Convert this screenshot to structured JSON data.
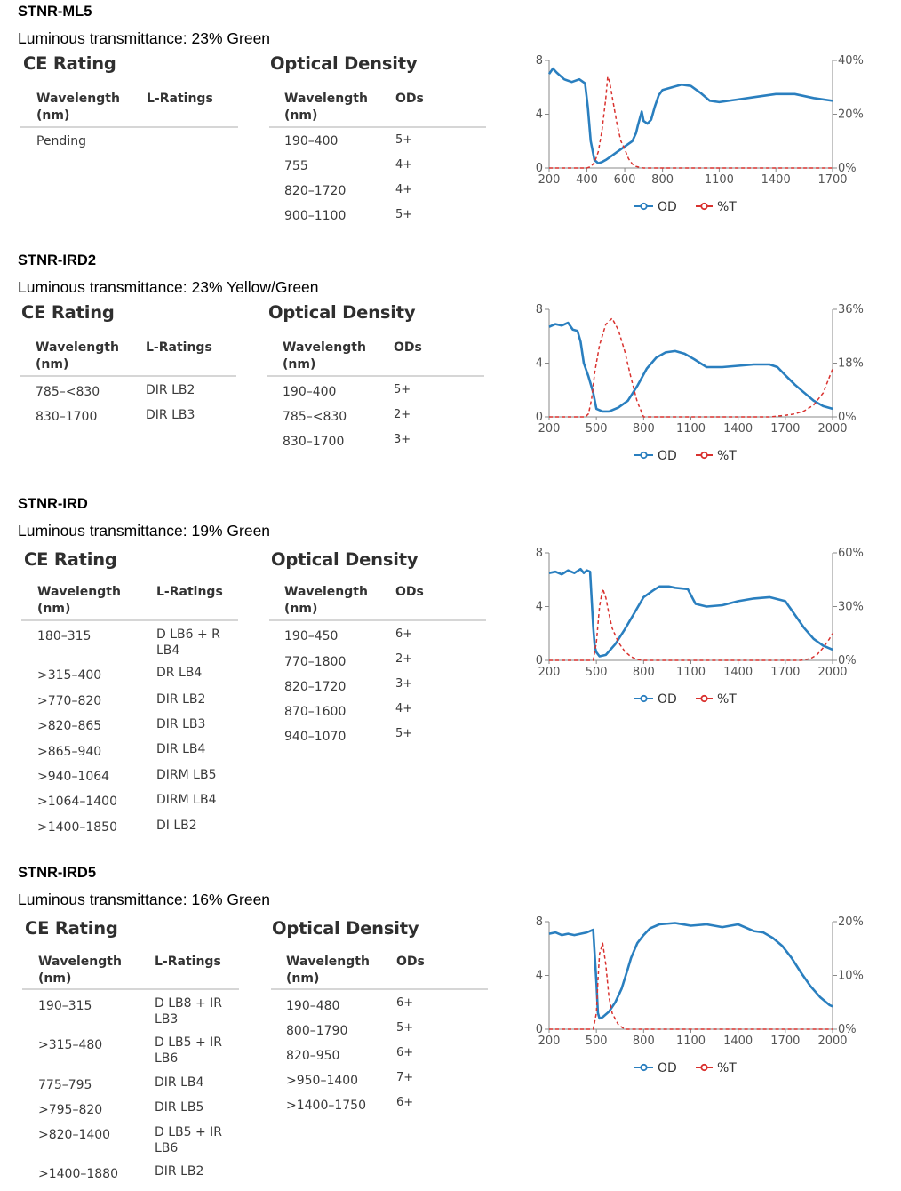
{
  "labels": {
    "ce_rating": "CE Rating",
    "optical_density": "Optical Density",
    "wavelength_nm": "Wavelength (nm)",
    "l_ratings": "L-Ratings",
    "ods": "ODs"
  },
  "legend": {
    "od": "OD",
    "t": "%T"
  },
  "colors": {
    "od": "#2a7fbf",
    "t": "#d9322f",
    "rule": "#d6d6d6",
    "axis": "#888888"
  },
  "products": [
    {
      "name": "STNR-ML5",
      "luminous": "Luminous transmittance: 23% Green",
      "ce": [
        {
          "wavelength": "Pending",
          "rating": ""
        }
      ],
      "od": [
        {
          "wavelength": "190–400",
          "od": "5+"
        },
        {
          "wavelength": "755",
          "od": "4+"
        },
        {
          "wavelength": "820–1720",
          "od": "4+"
        },
        {
          "wavelength": "900–1100",
          "od": "5+"
        }
      ]
    },
    {
      "name": "STNR-IRD2",
      "luminous": "Luminous transmittance: 23% Yellow/Green",
      "ce": [
        {
          "wavelength": "785–<830",
          "rating": "DIR LB2"
        },
        {
          "wavelength": "830–1700",
          "rating": "DIR LB3"
        }
      ],
      "od": [
        {
          "wavelength": "190–400",
          "od": "5+"
        },
        {
          "wavelength": "785–<830",
          "od": "2+"
        },
        {
          "wavelength": "830–1700",
          "od": "3+"
        }
      ]
    },
    {
      "name": "STNR-IRD",
      "luminous": "Luminous transmittance: 19% Green",
      "ce": [
        {
          "wavelength": "180–315",
          "rating": "D LB6 + R LB4"
        },
        {
          "wavelength": ">315–400",
          "rating": "DR LB4"
        },
        {
          "wavelength": ">770–820",
          "rating": "DIR LB2"
        },
        {
          "wavelength": ">820–865",
          "rating": "DIR LB3"
        },
        {
          "wavelength": ">865–940",
          "rating": "DIR LB4"
        },
        {
          "wavelength": ">940–1064",
          "rating": "DIRM LB5"
        },
        {
          "wavelength": ">1064–1400",
          "rating": "DIRM LB4"
        },
        {
          "wavelength": ">1400–1850",
          "rating": "DI LB2"
        }
      ],
      "od": [
        {
          "wavelength": "190–450",
          "od": "6+"
        },
        {
          "wavelength": "770–1800",
          "od": "2+"
        },
        {
          "wavelength": "820–1720",
          "od": "3+"
        },
        {
          "wavelength": "870–1600",
          "od": "4+"
        },
        {
          "wavelength": "940–1070",
          "od": "5+"
        }
      ]
    },
    {
      "name": "STNR-IRD5",
      "luminous": "Luminous transmittance: 16% Green",
      "ce": [
        {
          "wavelength": "190–315",
          "rating": "D LB8 + IR LB3"
        },
        {
          "wavelength": ">315–480",
          "rating": "D LB5 + IR LB6"
        },
        {
          "wavelength": "775–795",
          "rating": "DIR LB4"
        },
        {
          "wavelength": ">795–820",
          "rating": "DIR LB5"
        },
        {
          "wavelength": ">820–1400",
          "rating": "D LB5 + IR LB6"
        },
        {
          "wavelength": ">1400–1880",
          "rating": "DIR LB2"
        }
      ],
      "od": [
        {
          "wavelength": "190–480",
          "od": "6+"
        },
        {
          "wavelength": "800–1790",
          "od": "5+"
        },
        {
          "wavelength": "820–950",
          "od": "6+"
        },
        {
          "wavelength": ">950–1400",
          "od": "7+"
        },
        {
          "wavelength": ">1400–1750",
          "od": "6+"
        }
      ]
    }
  ],
  "chart_data": [
    {
      "type": "line",
      "title": "",
      "xlabel": "",
      "ylabel": "",
      "xlim": [
        200,
        1700
      ],
      "ylim_left": [
        0,
        8
      ],
      "ylim_right": [
        0,
        40
      ],
      "x_ticks": [
        "200",
        "400",
        "600",
        "800",
        "1100",
        "1400",
        "1700"
      ],
      "y_left_ticks": [
        "0",
        "4",
        "8"
      ],
      "y_right_ticks": [
        "0%",
        "20%",
        "40%"
      ],
      "legend": "bottom-center",
      "series": [
        {
          "name": "OD",
          "axis": "left",
          "x": [
            200,
            220,
            240,
            280,
            320,
            360,
            390,
            405,
            420,
            440,
            460,
            480,
            500,
            530,
            560,
            600,
            640,
            660,
            670,
            690,
            700,
            720,
            740,
            760,
            780,
            800,
            850,
            900,
            950,
            1000,
            1050,
            1100,
            1150,
            1200,
            1300,
            1400,
            1500,
            1600,
            1700
          ],
          "y": [
            7.0,
            7.4,
            7.1,
            6.6,
            6.4,
            6.6,
            6.3,
            4.5,
            2.0,
            0.6,
            0.35,
            0.45,
            0.6,
            0.9,
            1.2,
            1.6,
            2.0,
            2.6,
            3.2,
            4.2,
            3.5,
            3.3,
            3.6,
            4.6,
            5.4,
            5.8,
            6.0,
            6.2,
            6.1,
            5.6,
            5.0,
            4.9,
            5.0,
            5.1,
            5.3,
            5.5,
            5.5,
            5.2,
            5.0
          ]
        },
        {
          "name": "%T",
          "axis": "right",
          "x": [
            200,
            400,
            420,
            440,
            460,
            480,
            500,
            510,
            520,
            540,
            560,
            580,
            600,
            620,
            640,
            660,
            680,
            700,
            1700
          ],
          "y": [
            0,
            0,
            0.5,
            2,
            6,
            14,
            26,
            34,
            32,
            24,
            16,
            10,
            7,
            3.5,
            1.5,
            0.6,
            0.2,
            0,
            0
          ]
        }
      ]
    },
    {
      "type": "line",
      "title": "",
      "xlabel": "",
      "ylabel": "",
      "xlim": [
        200,
        2000
      ],
      "ylim_left": [
        0,
        8
      ],
      "ylim_right": [
        0,
        36
      ],
      "x_ticks": [
        "200",
        "500",
        "800",
        "1100",
        "1400",
        "1700",
        "2000"
      ],
      "y_left_ticks": [
        "0",
        "4",
        "8"
      ],
      "y_right_ticks": [
        "0%",
        "18%",
        "36%"
      ],
      "legend": "bottom-center",
      "series": [
        {
          "name": "OD",
          "axis": "left",
          "x": [
            200,
            240,
            280,
            320,
            350,
            380,
            400,
            420,
            450,
            480,
            500,
            540,
            580,
            640,
            700,
            760,
            820,
            880,
            940,
            1000,
            1060,
            1120,
            1200,
            1300,
            1400,
            1500,
            1600,
            1650,
            1700,
            1760,
            1820,
            1880,
            1940,
            2000
          ],
          "y": [
            6.7,
            6.9,
            6.8,
            7.0,
            6.5,
            6.4,
            5.6,
            4.0,
            3.0,
            1.8,
            0.6,
            0.4,
            0.4,
            0.7,
            1.2,
            2.3,
            3.6,
            4.4,
            4.8,
            4.9,
            4.7,
            4.3,
            3.7,
            3.7,
            3.8,
            3.9,
            3.9,
            3.7,
            3.1,
            2.4,
            1.8,
            1.2,
            0.8,
            0.6
          ]
        },
        {
          "name": "%T",
          "axis": "right",
          "x": [
            200,
            430,
            450,
            470,
            490,
            520,
            560,
            600,
            640,
            680,
            720,
            760,
            800,
            1600,
            1700,
            1760,
            1820,
            1880,
            1940,
            2000
          ],
          "y": [
            0,
            0,
            1,
            6,
            15,
            24,
            31,
            33,
            29,
            22,
            13,
            5,
            0,
            0,
            0.5,
            1,
            2,
            4,
            8,
            16
          ]
        }
      ]
    },
    {
      "type": "line",
      "title": "",
      "xlabel": "",
      "ylabel": "",
      "xlim": [
        200,
        2000
      ],
      "ylim_left": [
        0,
        8
      ],
      "ylim_right": [
        0,
        60
      ],
      "x_ticks": [
        "200",
        "500",
        "800",
        "1100",
        "1400",
        "1700",
        "2000"
      ],
      "y_left_ticks": [
        "0",
        "4",
        "8"
      ],
      "y_right_ticks": [
        "0%",
        "30%",
        "60%"
      ],
      "legend": "bottom-center",
      "series": [
        {
          "name": "OD",
          "axis": "left",
          "x": [
            200,
            240,
            280,
            320,
            360,
            400,
            420,
            440,
            460,
            480,
            490,
            500,
            520,
            560,
            620,
            680,
            740,
            800,
            860,
            900,
            960,
            1000,
            1080,
            1130,
            1200,
            1300,
            1400,
            1500,
            1600,
            1700,
            1760,
            1820,
            1880,
            1940,
            2000
          ],
          "y": [
            6.5,
            6.6,
            6.4,
            6.7,
            6.5,
            6.8,
            6.5,
            6.7,
            6.6,
            2.5,
            1.0,
            0.6,
            0.3,
            0.4,
            1.2,
            2.3,
            3.5,
            4.7,
            5.2,
            5.5,
            5.5,
            5.4,
            5.3,
            4.2,
            4.0,
            4.1,
            4.4,
            4.6,
            4.7,
            4.4,
            3.4,
            2.4,
            1.6,
            1.1,
            0.8
          ]
        },
        {
          "name": "%T",
          "axis": "right",
          "x": [
            200,
            480,
            500,
            520,
            540,
            560,
            580,
            600,
            640,
            680,
            720,
            760,
            800,
            1800,
            1860,
            1900,
            1940,
            1980,
            2000
          ],
          "y": [
            0,
            0,
            10,
            30,
            40,
            35,
            26,
            18,
            10,
            5,
            2,
            0.5,
            0,
            0,
            1,
            3,
            7,
            12,
            15
          ]
        }
      ]
    },
    {
      "type": "line",
      "title": "",
      "xlabel": "",
      "ylabel": "",
      "xlim": [
        200,
        2000
      ],
      "ylim_left": [
        0,
        8
      ],
      "ylim_right": [
        0,
        20
      ],
      "x_ticks": [
        "200",
        "500",
        "800",
        "1100",
        "1400",
        "1700",
        "2000"
      ],
      "y_left_ticks": [
        "0",
        "4",
        "8"
      ],
      "y_right_ticks": [
        "0%",
        "10%",
        "20%"
      ],
      "legend": "bottom-center",
      "series": [
        {
          "name": "OD",
          "axis": "left",
          "x": [
            200,
            240,
            280,
            320,
            360,
            400,
            440,
            480,
            500,
            510,
            520,
            540,
            580,
            620,
            660,
            700,
            720,
            760,
            800,
            840,
            900,
            1000,
            1100,
            1200,
            1300,
            1400,
            1500,
            1560,
            1620,
            1680,
            1740,
            1800,
            1860,
            1920,
            1980,
            2000
          ],
          "y": [
            7.1,
            7.2,
            7.0,
            7.1,
            7.0,
            7.1,
            7.2,
            7.4,
            3.5,
            1.2,
            0.8,
            0.9,
            1.3,
            2.0,
            3.0,
            4.5,
            5.3,
            6.4,
            7.0,
            7.5,
            7.8,
            7.9,
            7.7,
            7.8,
            7.6,
            7.8,
            7.3,
            7.2,
            6.8,
            6.2,
            5.3,
            4.2,
            3.2,
            2.4,
            1.8,
            1.7
          ]
        },
        {
          "name": "%T",
          "axis": "right",
          "x": [
            200,
            480,
            500,
            510,
            520,
            540,
            560,
            580,
            600,
            640,
            680,
            2000
          ],
          "y": [
            0,
            0,
            3,
            9,
            14,
            16,
            12,
            6,
            3,
            0.8,
            0,
            0
          ]
        }
      ]
    }
  ]
}
